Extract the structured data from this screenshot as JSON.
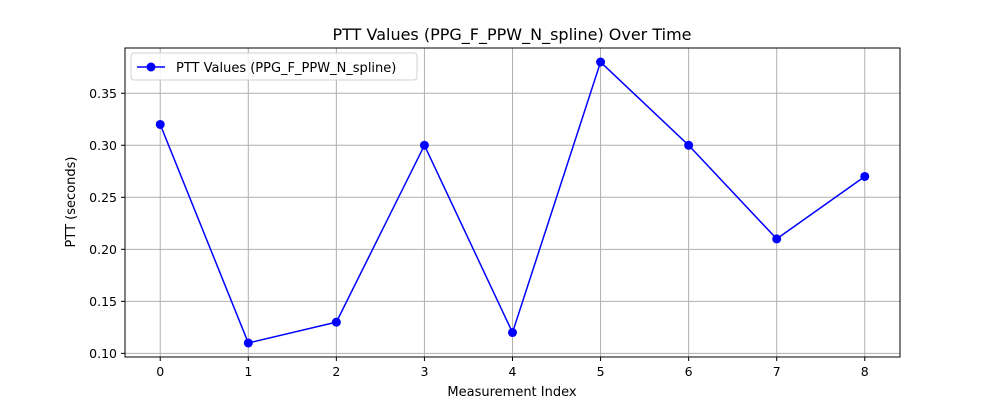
{
  "chart_data": {
    "type": "line",
    "title": "PTT Values (PPG_F_PPW_N_spline) Over Time",
    "xlabel": "Measurement Index",
    "ylabel": "PTT (seconds)",
    "x": [
      0,
      1,
      2,
      3,
      4,
      5,
      6,
      7,
      8
    ],
    "series": [
      {
        "name": "PTT Values (PPG_F_PPW_N_spline)",
        "color": "#0000ff",
        "marker": "circle",
        "values": [
          0.32,
          0.11,
          0.13,
          0.3,
          0.12,
          0.38,
          0.3,
          0.21,
          0.27
        ]
      }
    ],
    "xlim": [
      -0.4,
      8.4
    ],
    "ylim": [
      0.0965,
      0.3935
    ],
    "xticks": [
      "0",
      "1",
      "2",
      "3",
      "4",
      "5",
      "6",
      "7",
      "8"
    ],
    "yticks": [
      "0.10",
      "0.15",
      "0.20",
      "0.25",
      "0.30",
      "0.35"
    ],
    "grid": true,
    "legend_position": "top-left"
  }
}
